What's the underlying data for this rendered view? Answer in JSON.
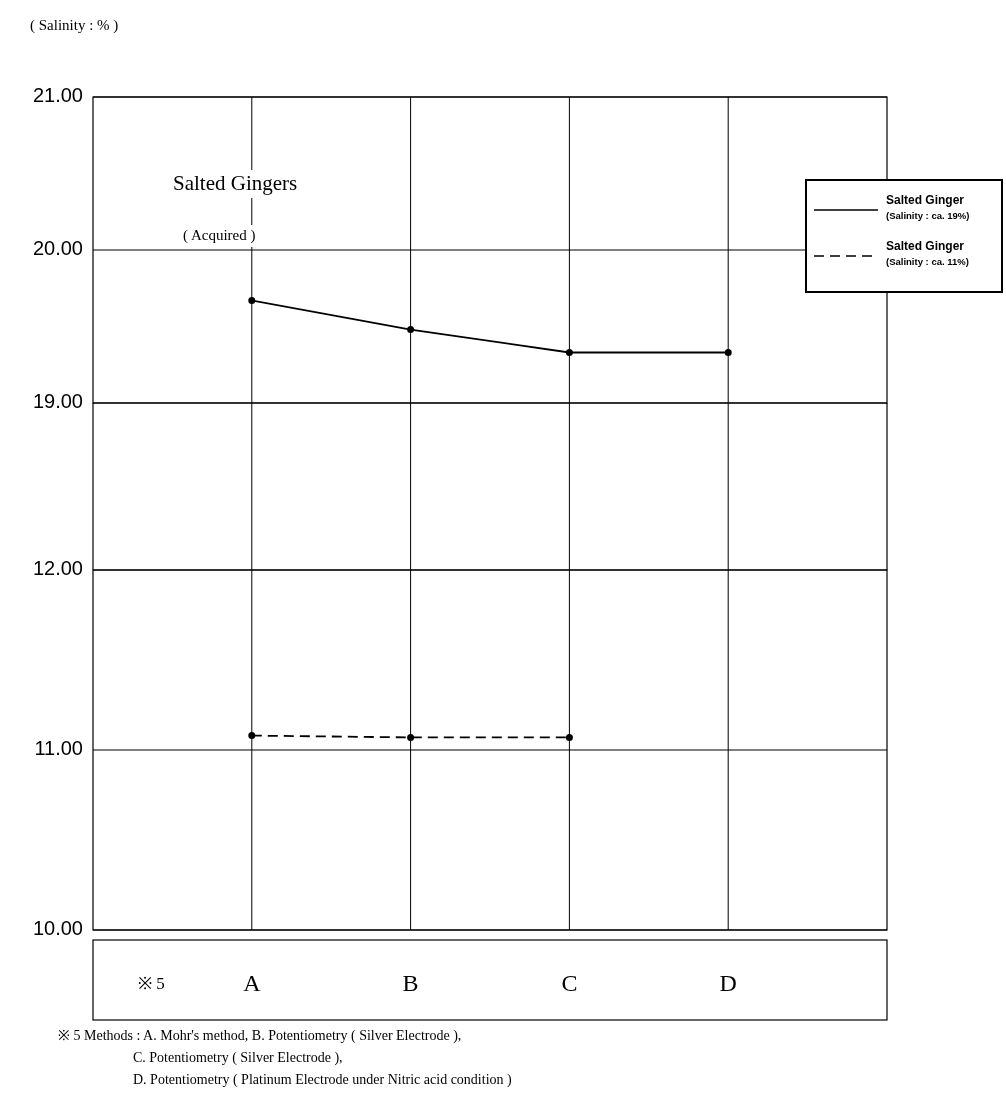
{
  "chart_data": [
    {
      "type": "line",
      "title": "Salted Gingers",
      "subtitle": "( Acquired )",
      "ylabel": "( Salinity : % )",
      "categories": [
        null,
        null,
        null,
        null
      ],
      "series": [
        {
          "name": "Salted Ginger\n(Salinity : ca. 19%)",
          "color": "#000000",
          "line_style": "solid",
          "values": [
            19.67,
            19.48,
            19.33,
            19.33
          ]
        }
      ],
      "ylim": [
        19,
        21
      ],
      "yticks": [
        {
          "value": 19,
          "label": "19.00"
        },
        {
          "value": 20,
          "label": "20.00"
        },
        {
          "value": 21,
          "label": "21.00"
        }
      ],
      "tick_labels": "y",
      "grid": true,
      "legend": "right",
      "marker": "circle"
    },
    {
      "type": "line",
      "xlabel": "※ 5",
      "categories": [
        "A",
        "B",
        "C",
        "D"
      ],
      "series": [
        {
          "name": "Salted Ginger\n(Salinity : ca. 11%)",
          "color": "#000000",
          "line_style": "dashed",
          "values": [
            11.08,
            11.07,
            11.07,
            null
          ]
        }
      ],
      "ylim": [
        10,
        12
      ],
      "yticks": [
        {
          "value": 10,
          "label": "10.00"
        },
        {
          "value": 11,
          "label": "11.00"
        },
        {
          "value": 12,
          "label": "12.00"
        }
      ],
      "grid": true,
      "legend": "right",
      "marker": "circle",
      "annotations": [
        "※ 5    Methods : A. Mohr's method,        B. Potentiometry ( Silver Electrode ),",
        "C. Potentiometry ( Silver Electrode ),",
        "D. Potentiometry ( Platinum Electrode under Nitric acid condition )"
      ]
    }
  ]
}
